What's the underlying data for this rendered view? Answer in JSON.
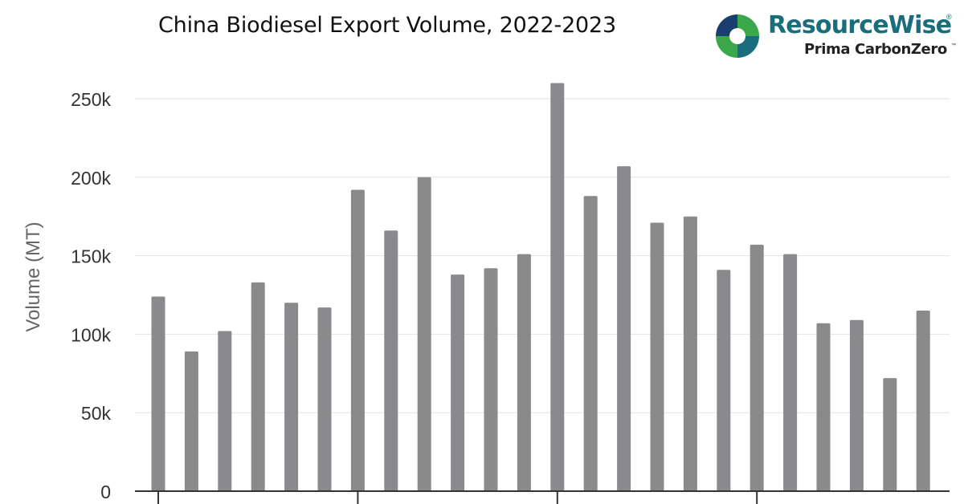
{
  "chart_data": {
    "type": "bar",
    "title": "China Biodiesel Export Volume, 2022-2023",
    "xlabel": "",
    "ylabel": "Volume (MT)",
    "ylim": [
      0,
      250000
    ],
    "yticks": [
      0,
      50000,
      100000,
      150000,
      200000,
      250000
    ],
    "ytick_labels": [
      "0",
      "50k",
      "100k",
      "150k",
      "200k",
      "250k"
    ],
    "grid": true,
    "values": [
      124000,
      89000,
      102000,
      133000,
      120000,
      117000,
      192000,
      166000,
      200000,
      138000,
      142000,
      151000,
      260000,
      188000,
      207000,
      171000,
      175000,
      141000,
      157000,
      151000,
      107000,
      109000,
      72000,
      115000
    ],
    "bar_color": "#8a8a8d"
  },
  "brand": {
    "name": "ResourceWise",
    "registered": "®",
    "sub": "Prima CarbonZero",
    "trademark": "™",
    "colors": [
      "#1a6e7c",
      "#3aa84a",
      "#1a3f6e"
    ]
  }
}
